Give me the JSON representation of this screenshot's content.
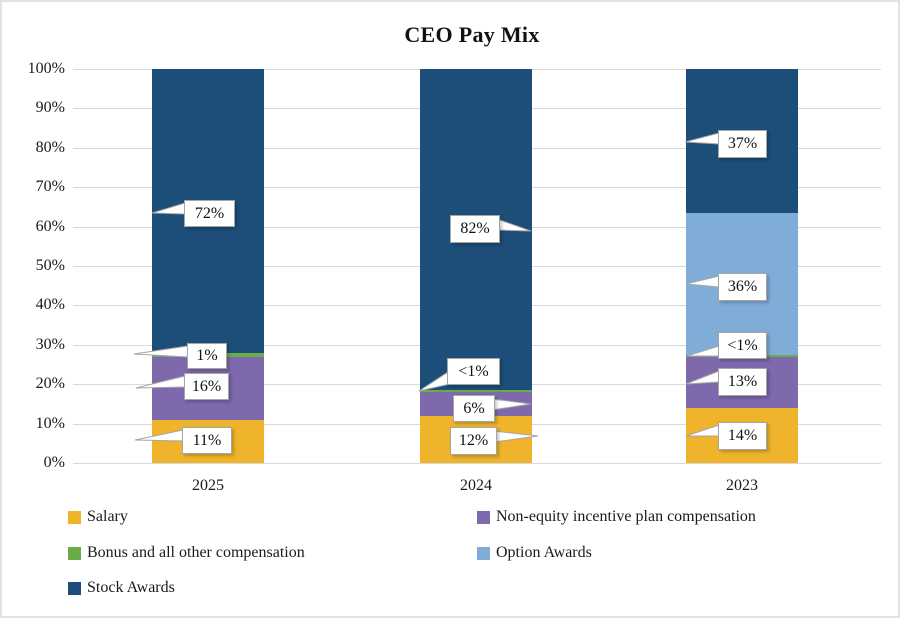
{
  "chart_data": {
    "type": "stacked-bar",
    "title": "CEO Pay Mix",
    "categories": [
      "2025",
      "2024",
      "2023"
    ],
    "series": [
      {
        "name": "Salary",
        "color": "#EFB42B",
        "values": [
          11,
          12,
          14
        ],
        "labels": [
          "11%",
          "12%",
          "14%"
        ]
      },
      {
        "name": "Non-equity incentive plan compensation",
        "color": "#7D69AC",
        "values": [
          16,
          6,
          13
        ],
        "labels": [
          "16%",
          "6%",
          "13%"
        ]
      },
      {
        "name": "Bonus and all other compensation",
        "color": "#6BAB45",
        "values": [
          1,
          0.5,
          0.5
        ],
        "labels": [
          "1%",
          "<1%",
          "<1%"
        ]
      },
      {
        "name": "Option Awards",
        "color": "#7FADD8",
        "values": [
          0,
          0,
          36
        ],
        "labels": [
          "",
          "",
          "36%"
        ]
      },
      {
        "name": "Stock Awards",
        "color": "#1D4E79",
        "values": [
          72,
          81.5,
          36.5
        ],
        "labels": [
          "72%",
          "82%",
          "37%"
        ]
      }
    ],
    "y_axis": {
      "min": 0,
      "max": 100,
      "ticks": [
        "0%",
        "10%",
        "20%",
        "30%",
        "40%",
        "50%",
        "60%",
        "70%",
        "80%",
        "90%",
        "100%"
      ]
    },
    "gridlines": true,
    "gridline_color": "#D9D9D9",
    "callout_border_color": "#A6A6A6",
    "legend": {
      "position": "bottom",
      "columns": [
        [
          "Salary",
          "Bonus and all other compensation",
          "Stock Awards"
        ],
        [
          "Non-equity incentive plan compensation",
          "Option Awards"
        ]
      ]
    }
  }
}
